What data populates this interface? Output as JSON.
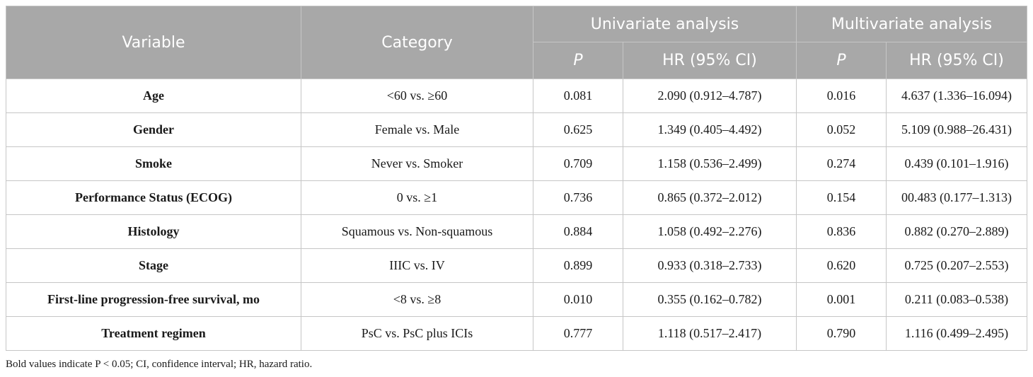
{
  "table": {
    "headers": {
      "variable": "Variable",
      "category": "Category",
      "univariate": "Univariate analysis",
      "multivariate": "Multivariate analysis",
      "p": "P",
      "hr": "HR (95% CI)"
    },
    "rows": [
      {
        "variable": "Age",
        "category": "<60 vs. ≥60",
        "uni_p": "0.081",
        "uni_hr": "2.090 (0.912–4.787)",
        "multi_p": "0.016",
        "multi_hr": "4.637 (1.336–16.094)"
      },
      {
        "variable": "Gender",
        "category": "Female vs. Male",
        "uni_p": "0.625",
        "uni_hr": "1.349 (0.405–4.492)",
        "multi_p": "0.052",
        "multi_hr": "5.109 (0.988–26.431)"
      },
      {
        "variable": "Smoke",
        "category": "Never vs. Smoker",
        "uni_p": "0.709",
        "uni_hr": "1.158 (0.536–2.499)",
        "multi_p": "0.274",
        "multi_hr": "0.439 (0.101–1.916)"
      },
      {
        "variable": "Performance Status (ECOG)",
        "category": "0 vs. ≥1",
        "uni_p": "0.736",
        "uni_hr": "0.865 (0.372–2.012)",
        "multi_p": "0.154",
        "multi_hr": "00.483 (0.177–1.313)"
      },
      {
        "variable": "Histology",
        "category": "Squamous vs. Non-squamous",
        "uni_p": "0.884",
        "uni_hr": "1.058 (0.492–2.276)",
        "multi_p": "0.836",
        "multi_hr": "0.882 (0.270–2.889)"
      },
      {
        "variable": "Stage",
        "category": "IIIC vs. IV",
        "uni_p": "0.899",
        "uni_hr": "0.933 (0.318–2.733)",
        "multi_p": "0.620",
        "multi_hr": "0.725 (0.207–2.553)"
      },
      {
        "variable": "First-line progression-free survival, mo",
        "category": "<8 vs. ≥8",
        "uni_p": "0.010",
        "uni_hr": "0.355 (0.162–0.782)",
        "multi_p": "0.001",
        "multi_hr": "0.211 (0.083–0.538)"
      },
      {
        "variable": "Treatment regimen",
        "category": "PsC vs. PsC plus ICIs",
        "uni_p": "0.777",
        "uni_hr": "1.118 (0.517–2.417)",
        "multi_p": "0.790",
        "multi_hr": "1.116 (0.499–2.495)"
      }
    ]
  },
  "footnote": "Bold values indicate P < 0.05; CI, confidence interval; HR, hazard ratio.",
  "colors": {
    "header_background": "#a8a8a8",
    "header_text": "#ffffff",
    "border": "#c6c6c6",
    "body_text": "#1a1a1a"
  }
}
